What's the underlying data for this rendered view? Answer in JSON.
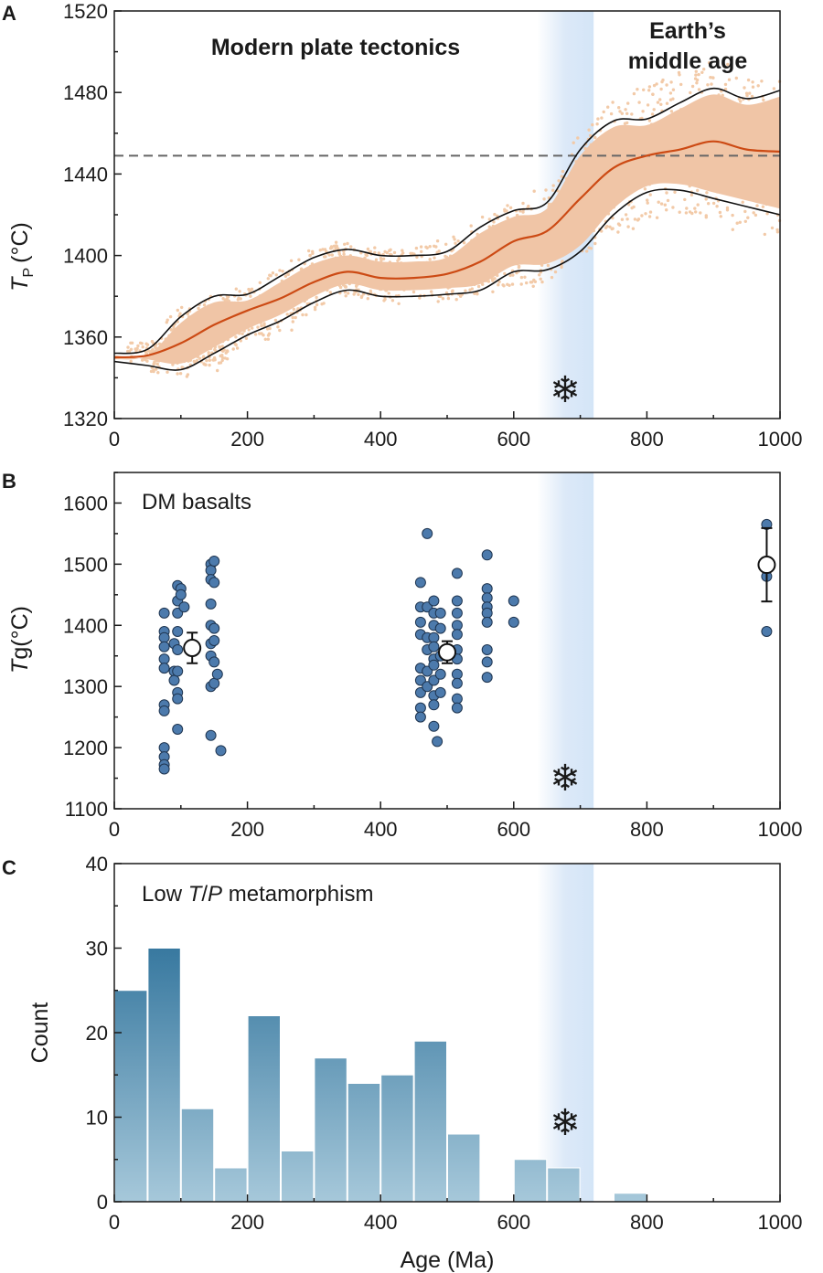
{
  "colors": {
    "band_fill": "#f0c5a6",
    "band_dots": "#f2caa8",
    "median_line": "#cc4a14",
    "envelope_line": "#111111",
    "reference_line": "#666666",
    "green_text": "#1d6b3f",
    "orange_text": "#c5431a",
    "snowflake": "#1b74b5",
    "marker": "#4c7aac",
    "bar_top": "#135e8c",
    "bar_bottom": "#a6c8da",
    "glaciation_band": "#dce9f8"
  },
  "glaciation": {
    "icon": "snowflake-icon",
    "glyph": "❄",
    "range": [
      635,
      720
    ]
  },
  "chart_data": [
    {
      "panel": "A",
      "type": "line",
      "xlim": [
        0,
        1000
      ],
      "ylim": [
        1320,
        1520
      ],
      "xticks": [
        0,
        200,
        400,
        600,
        800,
        1000
      ],
      "yticks": [
        1320,
        1360,
        1400,
        1440,
        1480,
        1520
      ],
      "ylabel_main": "T",
      "ylabel_sub": "P",
      "ylabel_unit": "(°C)",
      "annotations": {
        "modern": "Modern plate tectonics",
        "middle_age_1": "Earth’s",
        "middle_age_2": "middle age"
      },
      "reference_line_y": 1449,
      "x": [
        0,
        50,
        100,
        150,
        200,
        250,
        300,
        350,
        400,
        450,
        500,
        550,
        600,
        650,
        700,
        750,
        800,
        850,
        900,
        950,
        1000
      ],
      "median": [
        1350,
        1351,
        1357,
        1366,
        1373,
        1379,
        1387,
        1392,
        1389,
        1389,
        1391,
        1397,
        1407,
        1412,
        1428,
        1443,
        1449,
        1452,
        1456,
        1452,
        1451
      ],
      "upper": [
        1352,
        1354,
        1370,
        1380,
        1381,
        1390,
        1399,
        1403,
        1400,
        1400,
        1402,
        1414,
        1422,
        1426,
        1452,
        1466,
        1467,
        1475,
        1482,
        1477,
        1481
      ],
      "lower": [
        1348,
        1346,
        1344,
        1352,
        1361,
        1368,
        1377,
        1383,
        1380,
        1380,
        1381,
        1383,
        1392,
        1393,
        1402,
        1420,
        1431,
        1432,
        1428,
        1424,
        1420
      ],
      "scatter_x": [
        0,
        50,
        100,
        150,
        200,
        250,
        300,
        350,
        400,
        450,
        500,
        550,
        600,
        650,
        700,
        750,
        800,
        850,
        900,
        950,
        1000
      ],
      "scatter_hi": [
        1355,
        1358,
        1375,
        1381,
        1384,
        1394,
        1403,
        1407,
        1404,
        1404,
        1407,
        1417,
        1426,
        1432,
        1460,
        1475,
        1483,
        1490,
        1495,
        1490,
        1487
      ],
      "scatter_lo": [
        1345,
        1343,
        1341,
        1345,
        1356,
        1361,
        1373,
        1380,
        1378,
        1377,
        1378,
        1380,
        1385,
        1388,
        1399,
        1413,
        1417,
        1420,
        1418,
        1414,
        1403
      ],
      "low_cluster": {
        "x": [
          20,
          170
        ],
        "y": [
          1348,
          1358
        ]
      }
    },
    {
      "panel": "B",
      "type": "scatter",
      "xlim": [
        0,
        1000
      ],
      "ylim": [
        1100,
        1650
      ],
      "xticks": [
        0,
        200,
        400,
        600,
        800,
        1000
      ],
      "yticks": [
        1100,
        1200,
        1300,
        1400,
        1500,
        1600
      ],
      "ylabel_main": "T",
      "ylabel_sub": "g",
      "ylabel_unit": "(°C)",
      "label": "DM basalts",
      "points": [
        [
          75,
          1420
        ],
        [
          75,
          1390
        ],
        [
          75,
          1380
        ],
        [
          75,
          1365
        ],
        [
          75,
          1345
        ],
        [
          75,
          1330
        ],
        [
          75,
          1270
        ],
        [
          75,
          1260
        ],
        [
          75,
          1200
        ],
        [
          75,
          1185
        ],
        [
          75,
          1172
        ],
        [
          75,
          1165
        ],
        [
          90,
          1370
        ],
        [
          90,
          1325
        ],
        [
          90,
          1310
        ],
        [
          95,
          1465
        ],
        [
          95,
          1440
        ],
        [
          95,
          1420
        ],
        [
          95,
          1390
        ],
        [
          95,
          1360
        ],
        [
          95,
          1325
        ],
        [
          95,
          1290
        ],
        [
          95,
          1280
        ],
        [
          95,
          1230
        ],
        [
          100,
          1460
        ],
        [
          100,
          1450
        ],
        [
          105,
          1430
        ],
        [
          145,
          1500
        ],
        [
          145,
          1490
        ],
        [
          145,
          1475
        ],
        [
          145,
          1435
        ],
        [
          145,
          1400
        ],
        [
          145,
          1370
        ],
        [
          145,
          1350
        ],
        [
          145,
          1300
        ],
        [
          145,
          1220
        ],
        [
          150,
          1505
        ],
        [
          150,
          1470
        ],
        [
          150,
          1395
        ],
        [
          150,
          1375
        ],
        [
          150,
          1340
        ],
        [
          150,
          1305
        ],
        [
          155,
          1320
        ],
        [
          160,
          1195
        ],
        [
          460,
          1470
        ],
        [
          460,
          1430
        ],
        [
          460,
          1405
        ],
        [
          460,
          1385
        ],
        [
          460,
          1330
        ],
        [
          460,
          1310
        ],
        [
          460,
          1290
        ],
        [
          460,
          1265
        ],
        [
          460,
          1250
        ],
        [
          470,
          1550
        ],
        [
          470,
          1430
        ],
        [
          470,
          1380
        ],
        [
          470,
          1360
        ],
        [
          470,
          1325
        ],
        [
          470,
          1300
        ],
        [
          480,
          1440
        ],
        [
          480,
          1420
        ],
        [
          480,
          1400
        ],
        [
          480,
          1380
        ],
        [
          480,
          1365
        ],
        [
          480,
          1345
        ],
        [
          480,
          1335
        ],
        [
          480,
          1310
        ],
        [
          480,
          1285
        ],
        [
          480,
          1270
        ],
        [
          480,
          1235
        ],
        [
          485,
          1210
        ],
        [
          490,
          1420
        ],
        [
          490,
          1395
        ],
        [
          490,
          1350
        ],
        [
          490,
          1320
        ],
        [
          490,
          1290
        ],
        [
          515,
          1485
        ],
        [
          515,
          1440
        ],
        [
          515,
          1420
        ],
        [
          515,
          1400
        ],
        [
          515,
          1385
        ],
        [
          515,
          1360
        ],
        [
          515,
          1345
        ],
        [
          515,
          1320
        ],
        [
          515,
          1305
        ],
        [
          515,
          1280
        ],
        [
          515,
          1265
        ],
        [
          560,
          1515
        ],
        [
          560,
          1460
        ],
        [
          560,
          1445
        ],
        [
          560,
          1430
        ],
        [
          560,
          1420
        ],
        [
          560,
          1405
        ],
        [
          560,
          1360
        ],
        [
          560,
          1340
        ],
        [
          560,
          1315
        ],
        [
          600,
          1440
        ],
        [
          600,
          1405
        ],
        [
          980,
          1565
        ],
        [
          980,
          1480
        ],
        [
          980,
          1390
        ]
      ],
      "means": [
        {
          "x": 117,
          "y": 1363,
          "err": 25
        },
        {
          "x": 500,
          "y": 1356,
          "err": 18
        },
        {
          "x": 980,
          "y": 1499,
          "err": 60
        }
      ]
    },
    {
      "panel": "C",
      "type": "bar",
      "xlim": [
        0,
        1000
      ],
      "ylim": [
        0,
        40
      ],
      "xticks": [
        0,
        200,
        400,
        600,
        800,
        1000
      ],
      "yticks": [
        0,
        10,
        20,
        30,
        40
      ],
      "ylabel": "Count",
      "xlabel": "Age (Ma)",
      "label_pre": "Low ",
      "label_t": "T",
      "label_slash": "/",
      "label_p": "P",
      "label_post": " metamorphism",
      "bin_width": 50,
      "bin_starts": [
        0,
        50,
        100,
        150,
        200,
        250,
        300,
        350,
        400,
        450,
        500,
        550,
        600,
        650,
        700,
        750,
        800,
        850,
        900,
        950
      ],
      "values": [
        25,
        30,
        11,
        4,
        22,
        6,
        17,
        14,
        15,
        19,
        8,
        0,
        5,
        4,
        0,
        1,
        0,
        0,
        0,
        0
      ]
    }
  ]
}
